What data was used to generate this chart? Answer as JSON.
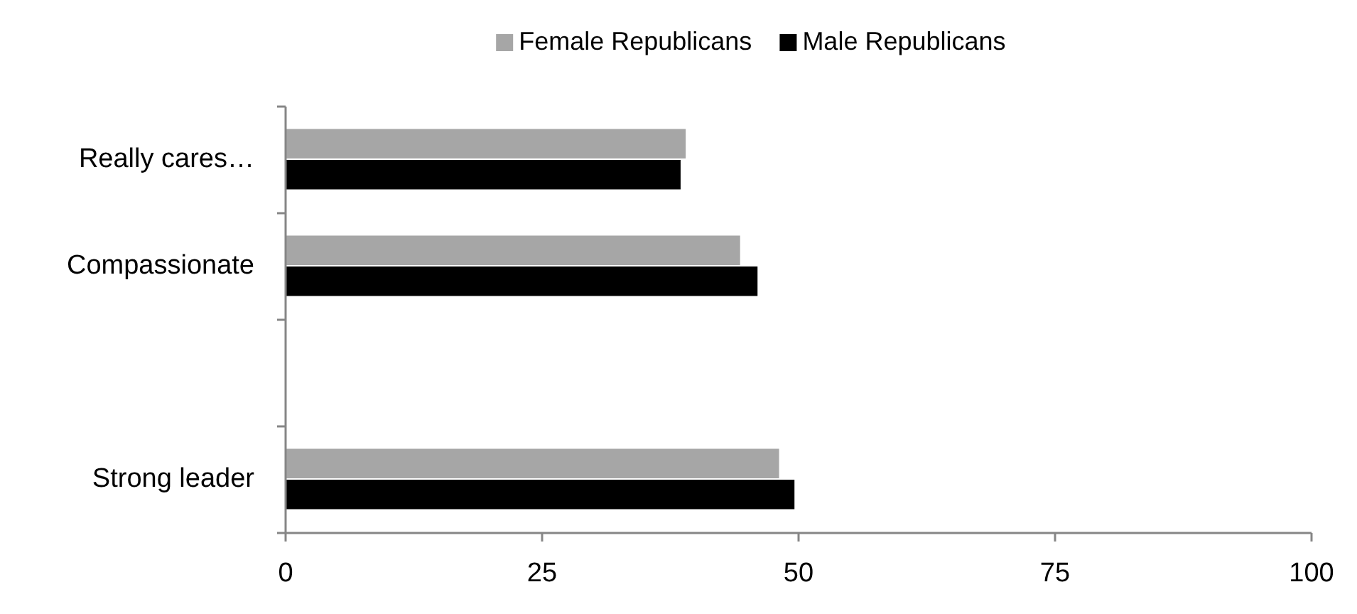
{
  "chart_data": {
    "type": "bar",
    "orientation": "horizontal",
    "categories": [
      "Really cares…",
      "Compassionate",
      null,
      "Strong leader"
    ],
    "series": [
      {
        "name": "Female Republicans",
        "color": "#a6a6a6",
        "values": [
          39.0,
          44.3,
          null,
          48.1
        ]
      },
      {
        "name": "Male Republicans",
        "color": "#000000",
        "values": [
          38.5,
          46.0,
          null,
          49.6
        ]
      }
    ],
    "xlim": [
      0,
      100
    ],
    "xticks": [
      0,
      25,
      50,
      75,
      100
    ],
    "grid": false,
    "legend": "top"
  }
}
